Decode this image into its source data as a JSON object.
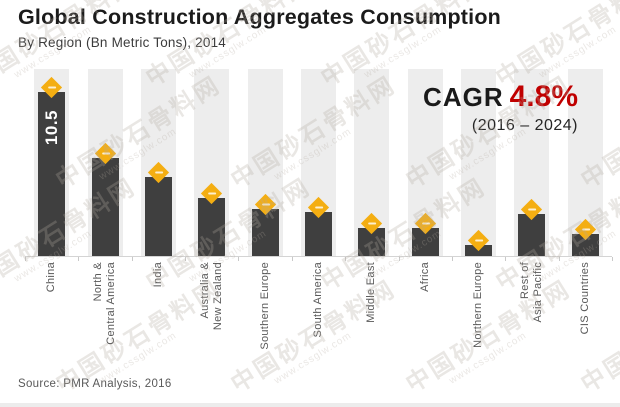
{
  "header": {
    "title": "Global Construction Aggregates Consumption",
    "subtitle": "By Region (Bn Metric Tons), 2014"
  },
  "annotation": {
    "label": "CAGR",
    "value": "4.8%",
    "period": "(2016 – 2024)"
  },
  "source_note": "Source: PMR Analysis, 2016",
  "watermark": {
    "cjk_text": "中国砂石骨料网",
    "url_text": "www.cssglw.com"
  },
  "chart_data": {
    "type": "bar",
    "title": "Global Construction Aggregates Consumption",
    "unit": "Bn Metric Tons",
    "year": "2014",
    "categories": [
      "China",
      "North & Central America",
      "India",
      "Australia & New Zealand",
      "Southern Europe",
      "South America",
      "Middle East",
      "Africa",
      "Northern Europe",
      "Rest of Asia Pacific",
      "CIS Countries"
    ],
    "category_lines": [
      [
        "China"
      ],
      [
        "North &",
        "Central America"
      ],
      [
        "India"
      ],
      [
        "Australia &",
        "New Zealand"
      ],
      [
        "Southern Europe"
      ],
      [
        "South America"
      ],
      [
        "Middle East"
      ],
      [
        "Africa"
      ],
      [
        "Northern Europe"
      ],
      [
        "Rest of",
        "Asia Pacific"
      ],
      [
        "CIS Countries"
      ]
    ],
    "values": [
      10.5,
      6.3,
      5.1,
      3.7,
      3.0,
      2.8,
      1.8,
      1.8,
      0.7,
      2.7,
      1.4
    ],
    "value_labels": [
      "10.5",
      "",
      "",
      "",
      "",
      "",
      "",
      "",
      "",
      "",
      ""
    ],
    "ylim": [
      0,
      12
    ],
    "grid": false,
    "legend": null,
    "marker": "diamond",
    "colors": {
      "bar": "#3f3f3f",
      "bar_track": "#ededed",
      "marker": "#f4ae12",
      "value_label": "#ffffff",
      "cagr_value": "#c00000",
      "axis": "#c9c9c9",
      "tick_label": "#595959"
    }
  }
}
